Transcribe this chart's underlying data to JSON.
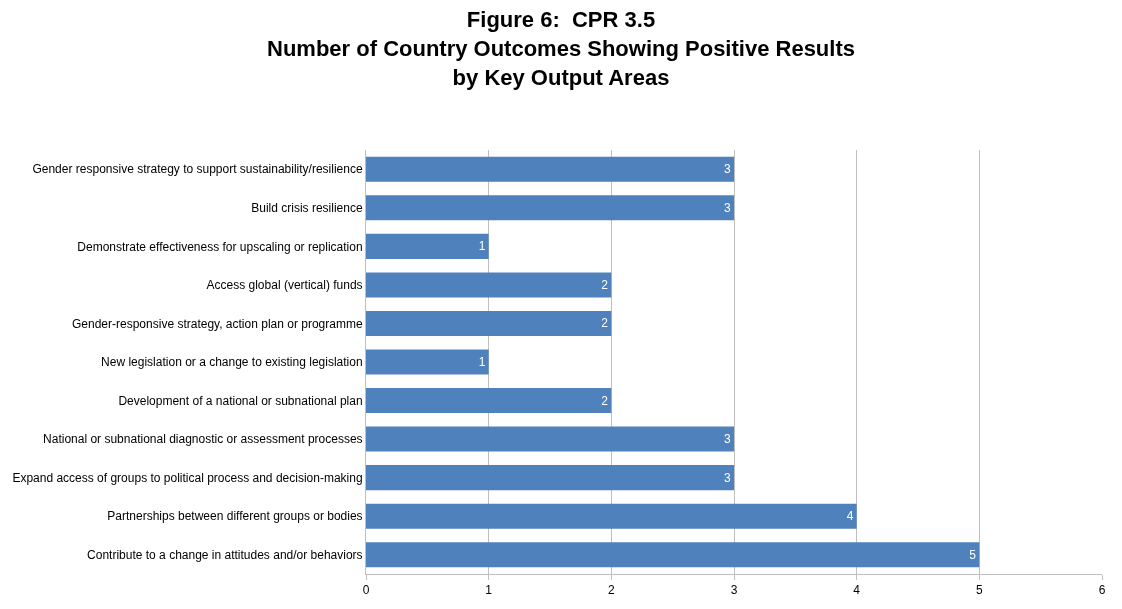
{
  "chart_data": {
    "type": "bar",
    "orientation": "horizontal",
    "title": "Figure 6:  CPR 3.5\nNumber of Country Outcomes Showing Positive Results\nby Key Output Areas",
    "categories": [
      "Gender responsive strategy to support sustainability/resilience",
      "Build crisis resilience",
      "Demonstrate effectiveness for upscaling or replication",
      "Access global (vertical) funds",
      "Gender-responsive strategy, action plan or programme",
      "New legislation or a change to existing legislation",
      "Development of a national or subnational plan",
      "National or subnational diagnostic or assessment processes",
      "Expand access of groups to political process and decision-making",
      "Partnerships between different groups or bodies",
      "Contribute to a change in attitudes and/or behaviors"
    ],
    "values": [
      3,
      3,
      1,
      2,
      2,
      1,
      2,
      3,
      3,
      4,
      5
    ],
    "color": "#4f81bd",
    "xlim": [
      0,
      6
    ],
    "xticks": [
      0,
      1,
      2,
      3,
      4,
      5,
      6
    ],
    "grid": "x",
    "data_labels": true
  }
}
